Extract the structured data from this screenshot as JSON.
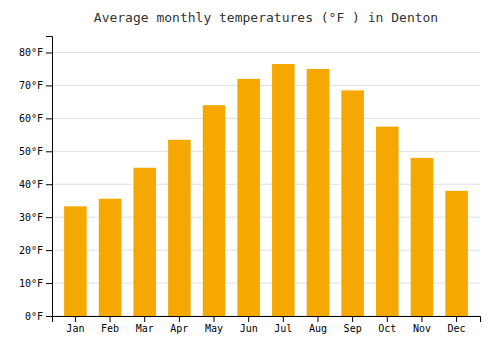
{
  "chart_data": {
    "type": "bar",
    "title": "Average monthly temperatures (°F ) in Denton",
    "categories": [
      "Jan",
      "Feb",
      "Mar",
      "Apr",
      "May",
      "Jun",
      "Jul",
      "Aug",
      "Sep",
      "Oct",
      "Nov",
      "Dec"
    ],
    "values": [
      33.3,
      35.6,
      45.0,
      53.5,
      64.0,
      72.0,
      76.5,
      75.0,
      68.5,
      57.5,
      48.0,
      38.0
    ],
    "color": "#F5A800",
    "ylim": [
      0,
      85
    ],
    "yticks": [
      {
        "value": 0,
        "label": "0°F"
      },
      {
        "value": 10,
        "label": "10°F"
      },
      {
        "value": 20,
        "label": "20°F"
      },
      {
        "value": 30,
        "label": "30°F"
      },
      {
        "value": 40,
        "label": "40°F"
      },
      {
        "value": 50,
        "label": "50°F"
      },
      {
        "value": 60,
        "label": "60°F"
      },
      {
        "value": 70,
        "label": "70°F"
      },
      {
        "value": 80,
        "label": "80°F"
      }
    ],
    "grid": true
  }
}
